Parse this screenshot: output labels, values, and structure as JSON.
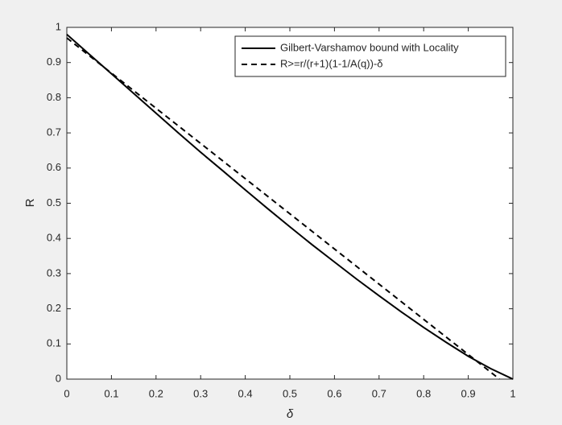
{
  "chart_data": {
    "type": "line",
    "xlabel": "δ",
    "ylabel": "R",
    "xlim": [
      0,
      1
    ],
    "ylim": [
      0,
      1
    ],
    "xticks": [
      0,
      0.1,
      0.2,
      0.3,
      0.4,
      0.5,
      0.6,
      0.7,
      0.8,
      0.9,
      1
    ],
    "yticks": [
      0,
      0.1,
      0.2,
      0.3,
      0.4,
      0.5,
      0.6,
      0.7,
      0.8,
      0.9,
      1
    ],
    "legend": "upper right",
    "series": [
      {
        "name": "Gilbert-Varshamov bound with Locality",
        "color": "#000000",
        "style": "solid",
        "x": [
          0,
          0.05,
          0.1,
          0.15,
          0.2,
          0.25,
          0.3,
          0.35,
          0.4,
          0.45,
          0.5,
          0.55,
          0.6,
          0.65,
          0.7,
          0.75,
          0.8,
          0.85,
          0.9,
          0.95,
          1
        ],
        "values": [
          0.98,
          0.924,
          0.868,
          0.812,
          0.756,
          0.7,
          0.645,
          0.592,
          0.538,
          0.485,
          0.433,
          0.382,
          0.333,
          0.284,
          0.237,
          0.191,
          0.147,
          0.105,
          0.065,
          0.03,
          0
        ]
      },
      {
        "name": "R>=r/(r+1)(1-1/A(q))-δ",
        "color": "#000000",
        "style": "dashed",
        "x": [
          0,
          0.97
        ],
        "values": [
          0.97,
          0
        ]
      }
    ]
  }
}
